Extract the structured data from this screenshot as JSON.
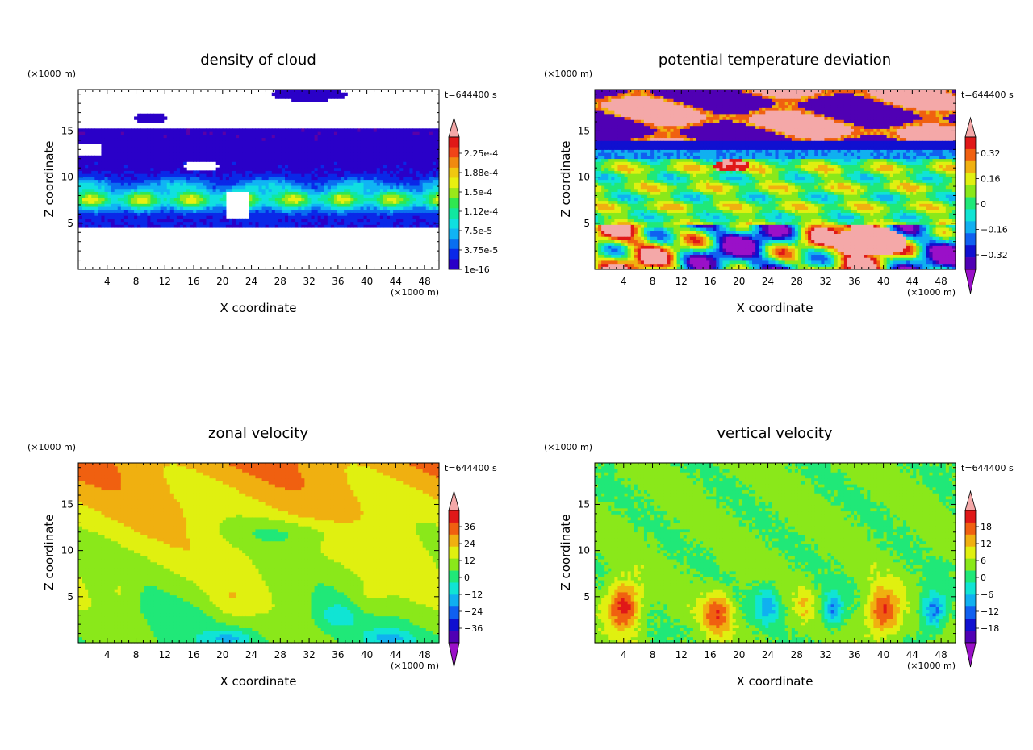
{
  "chart_data": [
    {
      "type": "heatmap",
      "title": "density of cloud",
      "xlabel": "X coordinate",
      "ylabel": "Z coordinate",
      "x_unit": "(×1000 m)",
      "y_unit": "(×1000 m)",
      "time_label": "t=644400 s",
      "xlim": [
        0,
        50
      ],
      "ylim": [
        0,
        19.5
      ],
      "x_ticks": [
        "4",
        "8",
        "12",
        "16",
        "20",
        "24",
        "28",
        "32",
        "36",
        "40",
        "44",
        "48"
      ],
      "y_ticks": [
        "5",
        "10",
        "15"
      ],
      "colorbar": {
        "labels": [
          "2.25e-4",
          "1.88e-4",
          "1.5e-4",
          "1.12e-4",
          "7.5e-5",
          "3.75e-5",
          "1e-16"
        ],
        "bottom_triangle": false,
        "colors": [
          "#5a00a8",
          "#2a00c8",
          "#0a28e8",
          "#0a6ef0",
          "#10b4f4",
          "#10e0e0",
          "#10e8a0",
          "#30e850",
          "#9ae81a",
          "#e8f010",
          "#f0c810",
          "#f08a10",
          "#f04418",
          "#e01818",
          "#f4a8a8"
        ]
      },
      "field_description": "cloud band roughly between 5 and 15 km, densest near 7-8 km"
    },
    {
      "type": "heatmap",
      "title": "potential temperature deviation",
      "xlabel": "X coordinate",
      "ylabel": "Z coordinate",
      "x_unit": "(×1000 m)",
      "y_unit": "(×1000 m)",
      "time_label": "t=644400 s",
      "xlim": [
        0,
        50
      ],
      "ylim": [
        0,
        19.5
      ],
      "x_ticks": [
        "4",
        "8",
        "12",
        "16",
        "20",
        "24",
        "28",
        "32",
        "36",
        "40",
        "44",
        "48"
      ],
      "y_ticks": [
        "5",
        "10",
        "15"
      ],
      "colorbar": {
        "labels": [
          "0.32",
          "0.16",
          "0",
          "−0.16",
          "−0.32"
        ],
        "bottom_triangle": true,
        "colors": [
          "#9a10c8",
          "#5000b4",
          "#1010d0",
          "#1060f0",
          "#10b0f0",
          "#10e4d4",
          "#20e878",
          "#8ae81a",
          "#e0f010",
          "#f0b010",
          "#f06010",
          "#e01818",
          "#f4a8a8"
        ]
      }
    },
    {
      "type": "heatmap",
      "title": "zonal velocity",
      "xlabel": "X coordinate",
      "ylabel": "Z coordinate",
      "x_unit": "(×1000 m)",
      "y_unit": "(×1000 m)",
      "time_label": "t=644400 s",
      "xlim": [
        0,
        50
      ],
      "ylim": [
        0,
        19.5
      ],
      "x_ticks": [
        "4",
        "8",
        "12",
        "16",
        "20",
        "24",
        "28",
        "32",
        "36",
        "40",
        "44",
        "48"
      ],
      "y_ticks": [
        "5",
        "10",
        "15"
      ],
      "colorbar": {
        "labels": [
          "36",
          "24",
          "12",
          "0",
          "−12",
          "−24",
          "−36"
        ],
        "bottom_triangle": true,
        "colors": [
          "#9a10c8",
          "#5000b4",
          "#1010d0",
          "#1060f0",
          "#10b0f0",
          "#10e4d4",
          "#20e878",
          "#8ae81a",
          "#e0f010",
          "#f0b010",
          "#f06010",
          "#e01818",
          "#f4a8a8"
        ]
      }
    },
    {
      "type": "heatmap",
      "title": "vertical velocity",
      "xlabel": "X coordinate",
      "ylabel": "Z coordinate",
      "x_unit": "(×1000 m)",
      "y_unit": "(×1000 m)",
      "time_label": "t=644400 s",
      "xlim": [
        0,
        50
      ],
      "ylim": [
        0,
        19.5
      ],
      "x_ticks": [
        "4",
        "8",
        "12",
        "16",
        "20",
        "24",
        "28",
        "32",
        "36",
        "40",
        "44",
        "48"
      ],
      "y_ticks": [
        "5",
        "10",
        "15"
      ],
      "colorbar": {
        "labels": [
          "18",
          "12",
          "6",
          "0",
          "−6",
          "−12",
          "−18"
        ],
        "bottom_triangle": true,
        "colors": [
          "#9a10c8",
          "#5000b4",
          "#1010d0",
          "#1060f0",
          "#10b0f0",
          "#10e4d4",
          "#20e878",
          "#8ae81a",
          "#e0f010",
          "#f0b010",
          "#f06010",
          "#e01818",
          "#f4a8a8"
        ]
      }
    }
  ]
}
